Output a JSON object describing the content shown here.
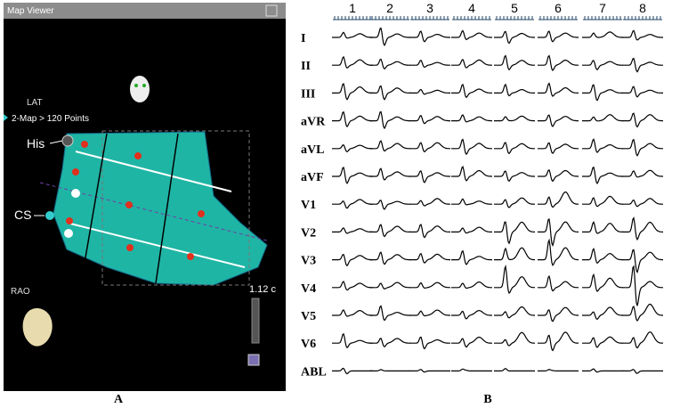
{
  "panel_a": {
    "window_title": "Map Viewer",
    "map_label": "LAT",
    "points_label": "2-Map > 120 Points",
    "his_label": "His",
    "cs_label": "CS",
    "view_label": "RAO",
    "scale_label": "1.12 c",
    "panel_label": "A"
  },
  "panel_b": {
    "columns": [
      "1",
      "2",
      "3",
      "4",
      "5",
      "6",
      "7",
      "8"
    ],
    "leads": [
      "I",
      "II",
      "III",
      "aVR",
      "aVL",
      "aVF",
      "V1",
      "V2",
      "V3",
      "V4",
      "V5",
      "V6",
      "ABL"
    ],
    "panel_label": "B"
  }
}
